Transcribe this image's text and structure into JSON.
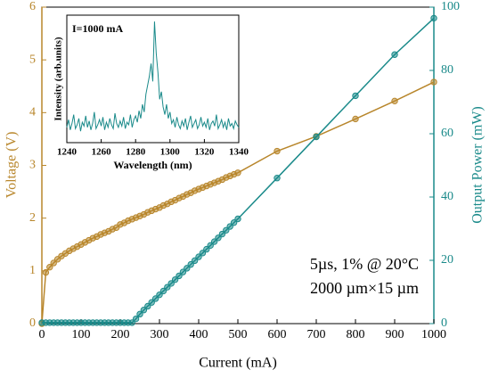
{
  "chart_data": [
    {
      "type": "line",
      "xlabel": "Current (mA)",
      "ylabel": "Voltage (V)",
      "y2label": "Output Power (mW)",
      "annotations": [
        "5µs, 1% @ 20°C",
        "2000 µm×15 µm"
      ],
      "x": [
        0,
        10,
        20,
        30,
        40,
        50,
        60,
        70,
        80,
        90,
        100,
        110,
        120,
        130,
        140,
        150,
        160,
        170,
        180,
        190,
        200,
        210,
        220,
        230,
        240,
        250,
        260,
        270,
        280,
        290,
        300,
        310,
        320,
        330,
        340,
        350,
        360,
        370,
        380,
        390,
        400,
        410,
        420,
        430,
        440,
        450,
        460,
        470,
        480,
        490,
        500,
        600,
        700,
        800,
        900,
        1000
      ],
      "series": [
        {
          "name": "Voltage",
          "color": "#b8862b",
          "axis": "y",
          "values": [
            0,
            0.97,
            1.07,
            1.15,
            1.22,
            1.28,
            1.33,
            1.38,
            1.42,
            1.46,
            1.5,
            1.54,
            1.58,
            1.62,
            1.65,
            1.69,
            1.72,
            1.75,
            1.79,
            1.82,
            1.88,
            1.91,
            1.95,
            1.98,
            2.01,
            2.04,
            2.07,
            2.11,
            2.14,
            2.17,
            2.2,
            2.24,
            2.27,
            2.31,
            2.34,
            2.38,
            2.41,
            2.45,
            2.48,
            2.52,
            2.55,
            2.58,
            2.61,
            2.64,
            2.67,
            2.7,
            2.73,
            2.77,
            2.8,
            2.83,
            2.86,
            3.27,
            3.55,
            3.88,
            4.22,
            4.58
          ]
        },
        {
          "name": "Output Power",
          "color": "#1a8a8a",
          "axis": "y2",
          "values": [
            0.3,
            0.3,
            0.3,
            0.3,
            0.3,
            0.3,
            0.3,
            0.3,
            0.3,
            0.3,
            0.3,
            0.3,
            0.3,
            0.3,
            0.3,
            0.3,
            0.3,
            0.3,
            0.3,
            0.3,
            0.3,
            0.3,
            0.3,
            0.3,
            1.5,
            3.0,
            4.3,
            5.5,
            6.7,
            7.9,
            9.1,
            10.3,
            11.5,
            12.7,
            13.9,
            15.1,
            16.3,
            17.5,
            18.7,
            19.9,
            21.1,
            22.3,
            23.5,
            24.7,
            25.9,
            27.1,
            28.3,
            29.5,
            30.7,
            31.9,
            33.1,
            46,
            59,
            72,
            85,
            96.5
          ]
        }
      ],
      "xlim": [
        0,
        1000
      ],
      "xticks": [
        0,
        100,
        200,
        300,
        400,
        500,
        600,
        700,
        800,
        900,
        1000
      ],
      "ylim": [
        0,
        6
      ],
      "yticks": [
        0,
        1,
        2,
        3,
        4,
        5,
        6
      ],
      "y2lim": [
        0,
        100
      ],
      "y2ticks": [
        0,
        20,
        40,
        60,
        80,
        100
      ]
    },
    {
      "type": "line",
      "annotation": "I=1000 mA",
      "xlabel": "Wavelength (nm)",
      "ylabel": "Intensity (arb.units)",
      "color": "#1a8a8a",
      "xlim": [
        1240,
        1340
      ],
      "xticks": [
        1240,
        1260,
        1280,
        1300,
        1320,
        1340
      ],
      "ylim": [
        0,
        1
      ],
      "x": [
        1240,
        1241,
        1242,
        1243,
        1244,
        1245,
        1246,
        1247,
        1248,
        1249,
        1250,
        1251,
        1252,
        1253,
        1254,
        1255,
        1256,
        1257,
        1258,
        1259,
        1260,
        1261,
        1262,
        1263,
        1264,
        1265,
        1266,
        1267,
        1268,
        1269,
        1270,
        1271,
        1272,
        1273,
        1274,
        1275,
        1276,
        1277,
        1278,
        1279,
        1280,
        1281,
        1282,
        1283,
        1284,
        1285,
        1286,
        1287,
        1288,
        1289,
        1290,
        1291,
        1292,
        1293,
        1294,
        1295,
        1296,
        1297,
        1298,
        1299,
        1300,
        1301,
        1302,
        1303,
        1304,
        1305,
        1306,
        1307,
        1308,
        1309,
        1310,
        1311,
        1312,
        1313,
        1314,
        1315,
        1316,
        1317,
        1318,
        1319,
        1320,
        1321,
        1322,
        1323,
        1324,
        1325,
        1326,
        1327,
        1328,
        1329,
        1330,
        1331,
        1332,
        1333,
        1334,
        1335,
        1336,
        1337,
        1338,
        1339,
        1340
      ],
      "values": [
        0.12,
        0.18,
        0.1,
        0.15,
        0.22,
        0.11,
        0.14,
        0.19,
        0.09,
        0.16,
        0.13,
        0.21,
        0.12,
        0.17,
        0.1,
        0.15,
        0.24,
        0.11,
        0.14,
        0.18,
        0.13,
        0.2,
        0.1,
        0.16,
        0.12,
        0.19,
        0.14,
        0.11,
        0.23,
        0.15,
        0.12,
        0.17,
        0.13,
        0.2,
        0.11,
        0.16,
        0.14,
        0.22,
        0.12,
        0.18,
        0.21,
        0.16,
        0.25,
        0.19,
        0.3,
        0.24,
        0.38,
        0.45,
        0.52,
        0.62,
        0.48,
        0.95,
        0.7,
        0.55,
        0.34,
        0.4,
        0.28,
        0.22,
        0.3,
        0.19,
        0.24,
        0.15,
        0.18,
        0.12,
        0.2,
        0.14,
        0.11,
        0.17,
        0.13,
        0.19,
        0.1,
        0.16,
        0.21,
        0.12,
        0.15,
        0.18,
        0.11,
        0.14,
        0.2,
        0.13,
        0.16,
        0.12,
        0.19,
        0.1,
        0.15,
        0.17,
        0.13,
        0.22,
        0.11,
        0.14,
        0.18,
        0.12,
        0.16,
        0.1,
        0.19,
        0.13,
        0.15,
        0.11,
        0.17,
        0.14,
        0.12
      ]
    }
  ]
}
